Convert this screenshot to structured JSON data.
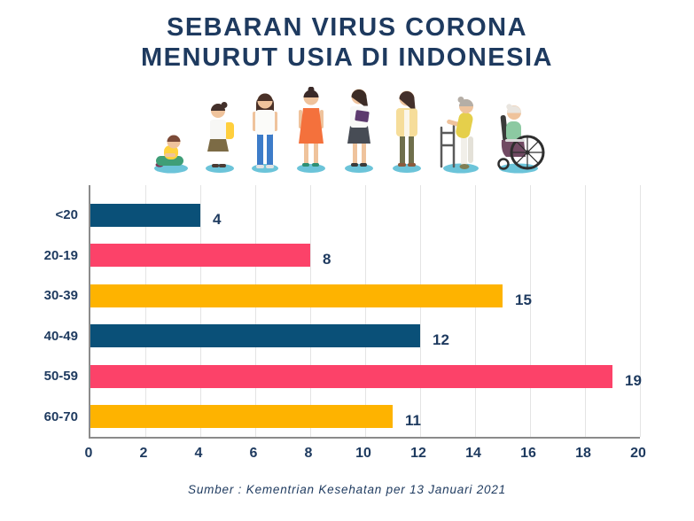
{
  "title": {
    "line1": "SEBARAN VIRUS CORONA",
    "line2": "MENURUT USIA DI INDONESIA"
  },
  "illustration": {
    "figures": [
      "toddler-sitting",
      "school-child",
      "teenager",
      "young-woman",
      "adult-woman-with-folder",
      "middle-aged-woman",
      "elderly-woman-with-walker",
      "elderly-woman-in-wheelchair"
    ]
  },
  "chart_data": {
    "type": "bar",
    "orientation": "horizontal",
    "title": "SEBARAN VIRUS CORONA MENURUT USIA DI INDONESIA",
    "categories": [
      "<20",
      "20-19",
      "30-39",
      "40-49",
      "50-59",
      "60-70"
    ],
    "values": [
      4,
      8,
      15,
      12,
      19,
      11
    ],
    "bar_colors": [
      "#0a5078",
      "#fc4269",
      "#feb300",
      "#0a5078",
      "#fc4269",
      "#feb300"
    ],
    "xlim": [
      0,
      20
    ],
    "x_ticks": [
      0,
      2,
      4,
      6,
      8,
      10,
      12,
      14,
      16,
      18,
      20
    ],
    "grid": true,
    "value_labels": true,
    "legend": false,
    "xlabel": "",
    "ylabel": ""
  },
  "source": "Sumber : Kementrian Kesehatan per 13 Januari 2021",
  "colors": {
    "navy_text": "#1e3a5f",
    "bar_navy": "#0a5078",
    "bar_pink": "#fc4269",
    "bar_yellow": "#feb300",
    "gridline": "#e4e4e4",
    "axis": "#8b8b8b",
    "shadow_teal": "#6cc4d9"
  }
}
